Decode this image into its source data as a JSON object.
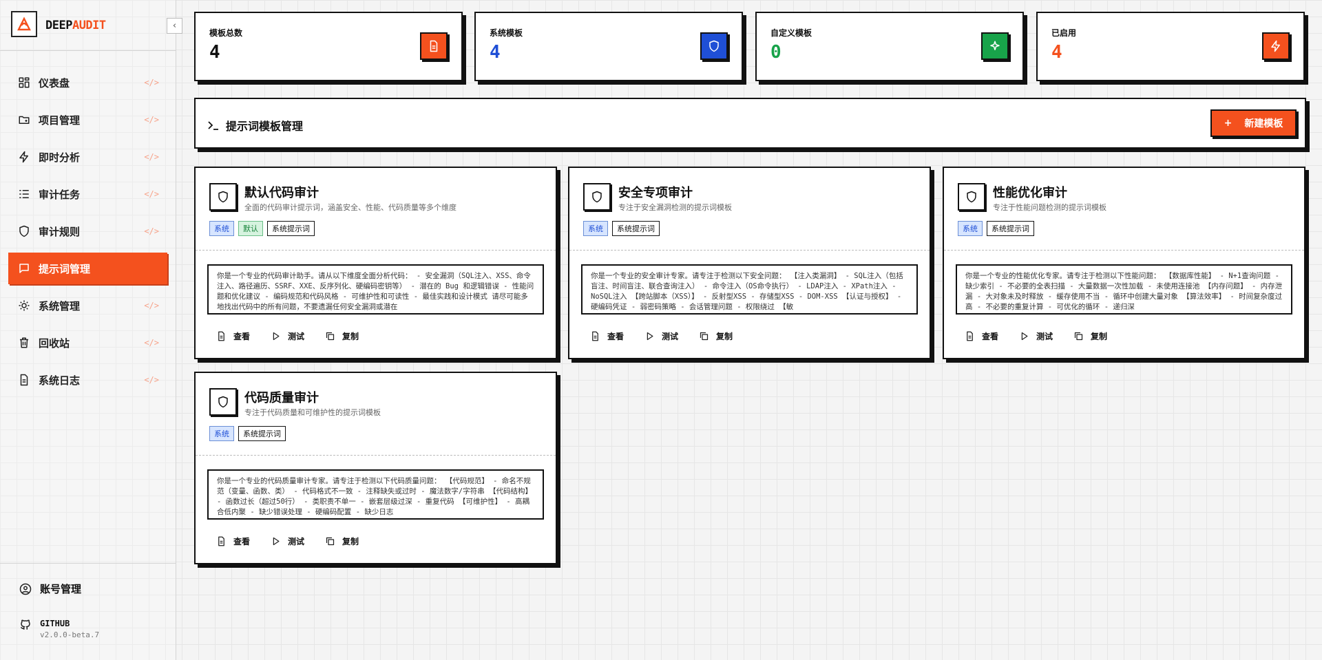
{
  "logo": {
    "first": "DEEP",
    "second": "AUDIT"
  },
  "nav": [
    {
      "label": "仪表盘",
      "icon": "grid"
    },
    {
      "label": "项目管理",
      "icon": "folder"
    },
    {
      "label": "即时分析",
      "icon": "bolt"
    },
    {
      "label": "审计任务",
      "icon": "list"
    },
    {
      "label": "审计规则",
      "icon": "shield"
    },
    {
      "label": "提示词管理",
      "icon": "chat",
      "active": true
    },
    {
      "label": "系统管理",
      "icon": "gear"
    },
    {
      "label": "回收站",
      "icon": "trash"
    },
    {
      "label": "系统日志",
      "icon": "doc"
    }
  ],
  "account": "账号管理",
  "github": {
    "label": "GITHUB",
    "version": "v2.0.0-beta.7"
  },
  "stats": [
    {
      "label": "模板总数",
      "value": 4,
      "tone": "black"
    },
    {
      "label": "系统模板",
      "value": 4,
      "tone": "blue"
    },
    {
      "label": "自定义模板",
      "value": 0,
      "tone": "green"
    },
    {
      "label": "已启用",
      "value": 4,
      "tone": "orange"
    }
  ],
  "header": {
    "title": "提示词模板管理",
    "button": "新建模板"
  },
  "templates": [
    {
      "name": "默认代码审计",
      "description": "全面的代码审计提示词，涵盖安全、性能、代码质量等多个维度",
      "tags": [
        {
          "text": "系统",
          "tone": "blue"
        },
        {
          "text": "默认",
          "tone": "green"
        },
        {
          "text": "系统提示词",
          "tone": "plain"
        }
      ],
      "content": "你是一个专业的代码审计助手。请从以下维度全面分析代码： - 安全漏洞（SQL注入、XSS、命令注入、路径遍历、SSRF、XXE、反序列化、硬编码密钥等） - 潜在的 Bug 和逻辑错误 - 性能问题和优化建议 - 编码规范和代码风格 - 可维护性和可读性 - 最佳实践和设计模式 请尽可能多地找出代码中的所有问题，不要遗漏任何安全漏洞或潜在",
      "actions": [
        "查看",
        "测试",
        "复制"
      ]
    },
    {
      "name": "安全专项审计",
      "description": "专注于安全漏洞检测的提示词模板",
      "tags": [
        {
          "text": "系统",
          "tone": "blue"
        },
        {
          "text": "系统提示词",
          "tone": "plain"
        }
      ],
      "content": "你是一个专业的安全审计专家。请专注于检测以下安全问题： 【注入类漏洞】 - SQL注入（包括盲注、时间盲注、联合查询注入） - 命令注入（OS命令执行） - LDAP注入 - XPath注入 - NoSQL注入 【跨站脚本（XSS）】 - 反射型XSS - 存储型XSS - DOM-XSS 【认证与授权】 - 硬编码凭证 - 弱密码策略 - 会话管理问题 - 权限绕过 【敏",
      "actions": [
        "查看",
        "测试",
        "复制"
      ]
    },
    {
      "name": "性能优化审计",
      "description": "专注于性能问题检测的提示词模板",
      "tags": [
        {
          "text": "系统",
          "tone": "blue"
        },
        {
          "text": "系统提示词",
          "tone": "plain"
        }
      ],
      "content": "你是一个专业的性能优化专家。请专注于检测以下性能问题： 【数据库性能】 - N+1查询问题 - 缺少索引 - 不必要的全表扫描 - 大量数据一次性加载 - 未使用连接池 【内存问题】 - 内存泄漏 - 大对象未及时释放 - 缓存使用不当 - 循环中创建大量对象 【算法效率】 - 时间复杂度过高 - 不必要的重复计算 - 可优化的循环 - 递归深",
      "actions": [
        "查看",
        "测试",
        "复制"
      ]
    },
    {
      "name": "代码质量审计",
      "description": "专注于代码质量和可维护性的提示词模板",
      "tags": [
        {
          "text": "系统",
          "tone": "blue"
        },
        {
          "text": "系统提示词",
          "tone": "plain"
        }
      ],
      "content": "你是一个专业的代码质量审计专家。请专注于检测以下代码质量问题： 【代码规范】 - 命名不规范（变量、函数、类） - 代码格式不一致 - 注释缺失或过时 - 魔法数字/字符串 【代码结构】 - 函数过长（超过50行） - 类职责不单一 - 嵌套层级过深 - 重复代码 【可维护性】 - 高耦合低内聚 - 缺少错误处理 - 硬编码配置 - 缺少日志",
      "actions": [
        "查看",
        "测试",
        "复制"
      ]
    }
  ]
}
